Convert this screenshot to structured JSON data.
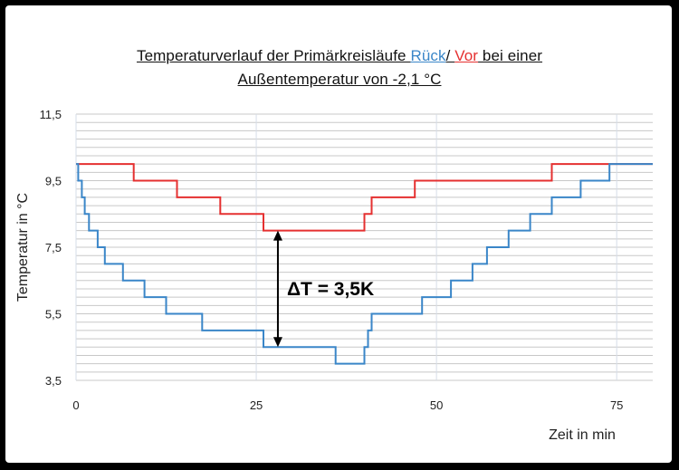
{
  "title": {
    "line1_prefix": "Temperaturverlauf  der Primärkreisläufe ",
    "line1_rueck": "Rück",
    "line1_sep": "/ ",
    "line1_vor": "Vor",
    "line1_suffix": " bei einer",
    "line2": "Außentemperatur von  -2,1 °C"
  },
  "colors": {
    "rueck": "#3a86c8",
    "vor": "#e53030",
    "grid": "#c8c8c8",
    "frame": "#000000"
  },
  "chart_data": {
    "type": "line",
    "step": true,
    "xlabel": "Zeit in min",
    "ylabel": "Temperatur in °C",
    "xlim": [
      0,
      80
    ],
    "ylim": [
      3.5,
      11.5
    ],
    "x_ticks": [
      0,
      25,
      50,
      75
    ],
    "x_tick_labels": [
      "0",
      "25",
      "50",
      "75"
    ],
    "y_ticks": [
      3.5,
      5.5,
      7.5,
      9.5,
      11.5
    ],
    "y_tick_labels": [
      "3,5",
      "5,5",
      "7,5",
      "9,5",
      "11,5"
    ],
    "minor_y_step": 0.25,
    "annotation": {
      "text": "ΔT = 3,5K",
      "x": 28,
      "from": 8.0,
      "to": 4.5
    },
    "series": [
      {
        "name": "Vor",
        "color": "#e53030",
        "points": [
          [
            0,
            10
          ],
          [
            8,
            10
          ],
          [
            8,
            9.5
          ],
          [
            14,
            9.5
          ],
          [
            14,
            9
          ],
          [
            20,
            9
          ],
          [
            20,
            8.5
          ],
          [
            26,
            8.5
          ],
          [
            26,
            8
          ],
          [
            40,
            8
          ],
          [
            40,
            8.5
          ],
          [
            41,
            8.5
          ],
          [
            41,
            9
          ],
          [
            47,
            9
          ],
          [
            47,
            9.5
          ],
          [
            66,
            9.5
          ],
          [
            66,
            10
          ],
          [
            80,
            10
          ]
        ]
      },
      {
        "name": "Rück",
        "color": "#3a86c8",
        "points": [
          [
            0,
            10
          ],
          [
            0.3,
            10
          ],
          [
            0.3,
            9.5
          ],
          [
            0.8,
            9.5
          ],
          [
            0.8,
            9
          ],
          [
            1.2,
            9
          ],
          [
            1.2,
            8.5
          ],
          [
            1.8,
            8.5
          ],
          [
            1.8,
            8
          ],
          [
            3,
            8
          ],
          [
            3,
            7.5
          ],
          [
            4,
            7.5
          ],
          [
            4,
            7
          ],
          [
            6.5,
            7
          ],
          [
            6.5,
            6.5
          ],
          [
            9.5,
            6.5
          ],
          [
            9.5,
            6
          ],
          [
            12.5,
            6
          ],
          [
            12.5,
            5.5
          ],
          [
            17.5,
            5.5
          ],
          [
            17.5,
            5
          ],
          [
            26,
            5
          ],
          [
            26,
            4.5
          ],
          [
            36,
            4.5
          ],
          [
            36,
            4
          ],
          [
            40,
            4
          ],
          [
            40,
            4.5
          ],
          [
            40.5,
            4.5
          ],
          [
            40.5,
            5
          ],
          [
            41,
            5
          ],
          [
            41,
            5.5
          ],
          [
            48,
            5.5
          ],
          [
            48,
            6
          ],
          [
            52,
            6
          ],
          [
            52,
            6.5
          ],
          [
            55,
            6.5
          ],
          [
            55,
            7
          ],
          [
            57,
            7
          ],
          [
            57,
            7.5
          ],
          [
            60,
            7.5
          ],
          [
            60,
            8
          ],
          [
            63,
            8
          ],
          [
            63,
            8.5
          ],
          [
            66,
            8.5
          ],
          [
            66,
            9
          ],
          [
            70,
            9
          ],
          [
            70,
            9.5
          ],
          [
            74,
            9.5
          ],
          [
            74,
            10
          ],
          [
            80,
            10
          ]
        ]
      }
    ]
  }
}
